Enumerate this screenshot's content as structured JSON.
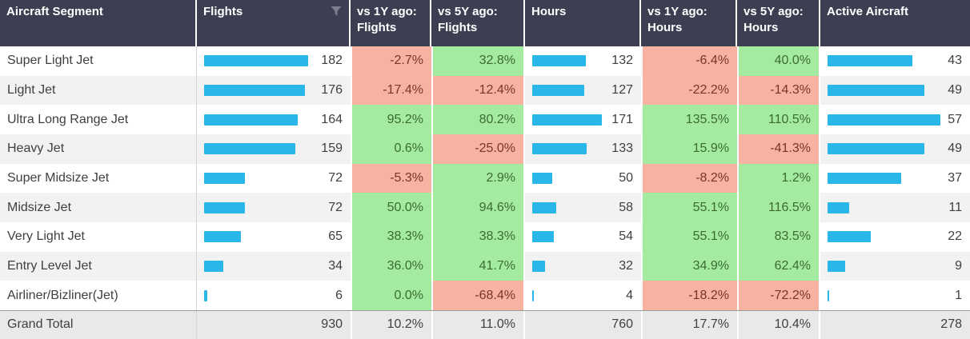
{
  "header": {
    "columns": [
      {
        "label": "Aircraft Segment"
      },
      {
        "label": "Flights",
        "icon": "filter-icon"
      },
      {
        "label": "vs 1Y ago: Flights"
      },
      {
        "label": "vs 5Y ago: Flights"
      },
      {
        "label": "Hours"
      },
      {
        "label": "vs 1Y ago: Hours"
      },
      {
        "label": "vs 5Y ago: Hours"
      },
      {
        "label": "Active Aircraft"
      }
    ]
  },
  "colors": {
    "header_bg": "#3b3f51",
    "bar": "#29b6e8",
    "positive_bg": "#a5eb9f",
    "positive_text": "#3a6b33",
    "negative_bg": "#f8b2a2",
    "negative_text": "#7a332c",
    "stripe": "#f2f2f2",
    "total_bg": "#e9e9e9"
  },
  "chart_data": {
    "type": "table",
    "columns": [
      "Aircraft Segment",
      "Flights",
      "vs 1Y ago: Flights",
      "vs 5Y ago: Flights",
      "Hours",
      "vs 1Y ago: Hours",
      "vs 5Y ago: Hours",
      "Active Aircraft"
    ],
    "bar_columns": [
      "Flights",
      "Hours",
      "Active Aircraft"
    ],
    "rows": [
      {
        "segment": "Super Light Jet",
        "flights": 182,
        "vs1y_flights": "-2.7%",
        "vs5y_flights": "32.8%",
        "hours": 132,
        "vs1y_hours": "-6.4%",
        "vs5y_hours": "40.0%",
        "active": 43
      },
      {
        "segment": "Light Jet",
        "flights": 176,
        "vs1y_flights": "-17.4%",
        "vs5y_flights": "-12.4%",
        "hours": 127,
        "vs1y_hours": "-22.2%",
        "vs5y_hours": "-14.3%",
        "active": 49
      },
      {
        "segment": "Ultra Long Range Jet",
        "flights": 164,
        "vs1y_flights": "95.2%",
        "vs5y_flights": "80.2%",
        "hours": 171,
        "vs1y_hours": "135.5%",
        "vs5y_hours": "110.5%",
        "active": 57
      },
      {
        "segment": "Heavy Jet",
        "flights": 159,
        "vs1y_flights": "0.6%",
        "vs5y_flights": "-25.0%",
        "hours": 133,
        "vs1y_hours": "15.9%",
        "vs5y_hours": "-41.3%",
        "active": 49
      },
      {
        "segment": "Super Midsize Jet",
        "flights": 72,
        "vs1y_flights": "-5.3%",
        "vs5y_flights": "2.9%",
        "hours": 50,
        "vs1y_hours": "-8.2%",
        "vs5y_hours": "1.2%",
        "active": 37
      },
      {
        "segment": "Midsize Jet",
        "flights": 72,
        "vs1y_flights": "50.0%",
        "vs5y_flights": "94.6%",
        "hours": 58,
        "vs1y_hours": "55.1%",
        "vs5y_hours": "116.5%",
        "active": 11
      },
      {
        "segment": "Very Light Jet",
        "flights": 65,
        "vs1y_flights": "38.3%",
        "vs5y_flights": "38.3%",
        "hours": 54,
        "vs1y_hours": "55.1%",
        "vs5y_hours": "83.5%",
        "active": 22
      },
      {
        "segment": "Entry Level Jet",
        "flights": 34,
        "vs1y_flights": "36.0%",
        "vs5y_flights": "41.7%",
        "hours": 32,
        "vs1y_hours": "34.9%",
        "vs5y_hours": "62.4%",
        "active": 9
      },
      {
        "segment": "Airliner/Bizliner(Jet)",
        "flights": 6,
        "vs1y_flights": "0.0%",
        "vs5y_flights": "-68.4%",
        "hours": 4,
        "vs1y_hours": "-18.2%",
        "vs5y_hours": "-72.2%",
        "active": 1
      }
    ],
    "grand_total": {
      "segment": "Grand Total",
      "flights": 930,
      "vs1y_flights": "10.2%",
      "vs5y_flights": "11.0%",
      "hours": 760,
      "vs1y_hours": "17.7%",
      "vs5y_hours": "10.4%",
      "active": 278
    }
  }
}
